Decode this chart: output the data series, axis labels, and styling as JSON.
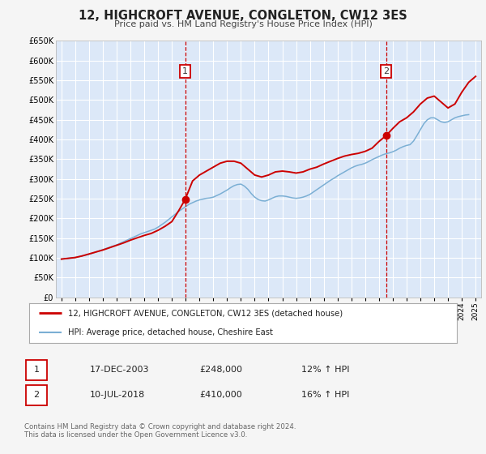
{
  "title": "12, HIGHCROFT AVENUE, CONGLETON, CW12 3ES",
  "subtitle": "Price paid vs. HM Land Registry's House Price Index (HPI)",
  "ylim": [
    0,
    650000
  ],
  "yticks": [
    0,
    50000,
    100000,
    150000,
    200000,
    250000,
    300000,
    350000,
    400000,
    450000,
    500000,
    550000,
    600000,
    650000
  ],
  "ytick_labels": [
    "£0",
    "£50K",
    "£100K",
    "£150K",
    "£200K",
    "£250K",
    "£300K",
    "£350K",
    "£400K",
    "£450K",
    "£500K",
    "£550K",
    "£600K",
    "£650K"
  ],
  "xlim_start": 1994.6,
  "xlim_end": 2025.4,
  "xticks": [
    1995,
    1996,
    1997,
    1998,
    1999,
    2000,
    2001,
    2002,
    2003,
    2004,
    2005,
    2006,
    2007,
    2008,
    2009,
    2010,
    2011,
    2012,
    2013,
    2014,
    2015,
    2016,
    2017,
    2018,
    2019,
    2020,
    2021,
    2022,
    2023,
    2024,
    2025
  ],
  "fig_bg_color": "#f5f5f5",
  "plot_bg_color": "#dce8f8",
  "grid_color": "#ffffff",
  "red_line_color": "#cc0000",
  "blue_line_color": "#7bafd4",
  "marker1_date": 2003.96,
  "marker1_value": 248000,
  "marker2_date": 2018.52,
  "marker2_value": 410000,
  "vline_color": "#cc0000",
  "legend_label_red": "12, HIGHCROFT AVENUE, CONGLETON, CW12 3ES (detached house)",
  "legend_label_blue": "HPI: Average price, detached house, Cheshire East",
  "table_row1": [
    "1",
    "17-DEC-2003",
    "£248,000",
    "12% ↑ HPI"
  ],
  "table_row2": [
    "2",
    "10-JUL-2018",
    "£410,000",
    "16% ↑ HPI"
  ],
  "footer": "Contains HM Land Registry data © Crown copyright and database right 2024.\nThis data is licensed under the Open Government Licence v3.0.",
  "hpi_x": [
    1995.0,
    1995.25,
    1995.5,
    1995.75,
    1996.0,
    1996.25,
    1996.5,
    1996.75,
    1997.0,
    1997.25,
    1997.5,
    1997.75,
    1998.0,
    1998.25,
    1998.5,
    1998.75,
    1999.0,
    1999.25,
    1999.5,
    1999.75,
    2000.0,
    2000.25,
    2000.5,
    2000.75,
    2001.0,
    2001.25,
    2001.5,
    2001.75,
    2002.0,
    2002.25,
    2002.5,
    2002.75,
    2003.0,
    2003.25,
    2003.5,
    2003.75,
    2004.0,
    2004.25,
    2004.5,
    2004.75,
    2005.0,
    2005.25,
    2005.5,
    2005.75,
    2006.0,
    2006.25,
    2006.5,
    2006.75,
    2007.0,
    2007.25,
    2007.5,
    2007.75,
    2008.0,
    2008.25,
    2008.5,
    2008.75,
    2009.0,
    2009.25,
    2009.5,
    2009.75,
    2010.0,
    2010.25,
    2010.5,
    2010.75,
    2011.0,
    2011.25,
    2011.5,
    2011.75,
    2012.0,
    2012.25,
    2012.5,
    2012.75,
    2013.0,
    2013.25,
    2013.5,
    2013.75,
    2014.0,
    2014.25,
    2014.5,
    2014.75,
    2015.0,
    2015.25,
    2015.5,
    2015.75,
    2016.0,
    2016.25,
    2016.5,
    2016.75,
    2017.0,
    2017.25,
    2017.5,
    2017.75,
    2018.0,
    2018.25,
    2018.5,
    2018.75,
    2019.0,
    2019.25,
    2019.5,
    2019.75,
    2020.0,
    2020.25,
    2020.5,
    2020.75,
    2021.0,
    2021.25,
    2021.5,
    2021.75,
    2022.0,
    2022.25,
    2022.5,
    2022.75,
    2023.0,
    2023.25,
    2023.5,
    2023.75,
    2024.0,
    2024.25,
    2024.5
  ],
  "hpi_y": [
    97000,
    98000,
    99000,
    100000,
    101000,
    103000,
    105000,
    107000,
    109000,
    112000,
    115000,
    118000,
    121000,
    124000,
    127000,
    130000,
    133000,
    137000,
    141000,
    145000,
    149000,
    153000,
    157000,
    161000,
    164000,
    167000,
    170000,
    173000,
    178000,
    184000,
    190000,
    197000,
    204000,
    211000,
    218000,
    224000,
    230000,
    236000,
    240000,
    244000,
    247000,
    249000,
    251000,
    252000,
    254000,
    258000,
    262000,
    267000,
    272000,
    278000,
    283000,
    286000,
    287000,
    282000,
    274000,
    263000,
    254000,
    248000,
    245000,
    244000,
    247000,
    251000,
    255000,
    257000,
    257000,
    256000,
    254000,
    252000,
    251000,
    252000,
    254000,
    257000,
    261000,
    267000,
    273000,
    279000,
    285000,
    291000,
    297000,
    302000,
    308000,
    313000,
    318000,
    323000,
    328000,
    332000,
    335000,
    337000,
    340000,
    344000,
    349000,
    353000,
    357000,
    361000,
    364000,
    366000,
    369000,
    373000,
    378000,
    382000,
    385000,
    387000,
    396000,
    410000,
    425000,
    440000,
    450000,
    455000,
    455000,
    450000,
    445000,
    443000,
    445000,
    450000,
    455000,
    458000,
    460000,
    462000,
    463000
  ],
  "price_x": [
    1995.0,
    1995.5,
    1996.0,
    1996.5,
    1997.0,
    1997.5,
    1998.0,
    1998.5,
    1999.0,
    1999.5,
    2000.0,
    2000.5,
    2001.0,
    2001.5,
    2002.0,
    2002.5,
    2003.0,
    2003.5,
    2003.96,
    2004.5,
    2005.0,
    2005.5,
    2006.0,
    2006.5,
    2007.0,
    2007.5,
    2008.0,
    2008.5,
    2009.0,
    2009.5,
    2010.0,
    2010.5,
    2011.0,
    2011.5,
    2012.0,
    2012.5,
    2013.0,
    2013.5,
    2014.0,
    2014.5,
    2015.0,
    2015.5,
    2016.0,
    2016.5,
    2017.0,
    2017.5,
    2018.0,
    2018.52,
    2019.0,
    2019.5,
    2020.0,
    2020.5,
    2021.0,
    2021.5,
    2022.0,
    2022.5,
    2023.0,
    2023.5,
    2024.0,
    2024.5,
    2025.0
  ],
  "price_y": [
    97000,
    99000,
    101000,
    105000,
    110000,
    115000,
    120000,
    126000,
    132000,
    138000,
    145000,
    151000,
    157000,
    162000,
    170000,
    180000,
    192000,
    220000,
    248000,
    295000,
    310000,
    320000,
    330000,
    340000,
    345000,
    345000,
    340000,
    325000,
    310000,
    305000,
    310000,
    318000,
    320000,
    318000,
    315000,
    318000,
    325000,
    330000,
    338000,
    345000,
    352000,
    358000,
    362000,
    365000,
    370000,
    378000,
    395000,
    410000,
    428000,
    445000,
    455000,
    470000,
    490000,
    505000,
    510000,
    495000,
    480000,
    490000,
    520000,
    545000,
    560000
  ]
}
